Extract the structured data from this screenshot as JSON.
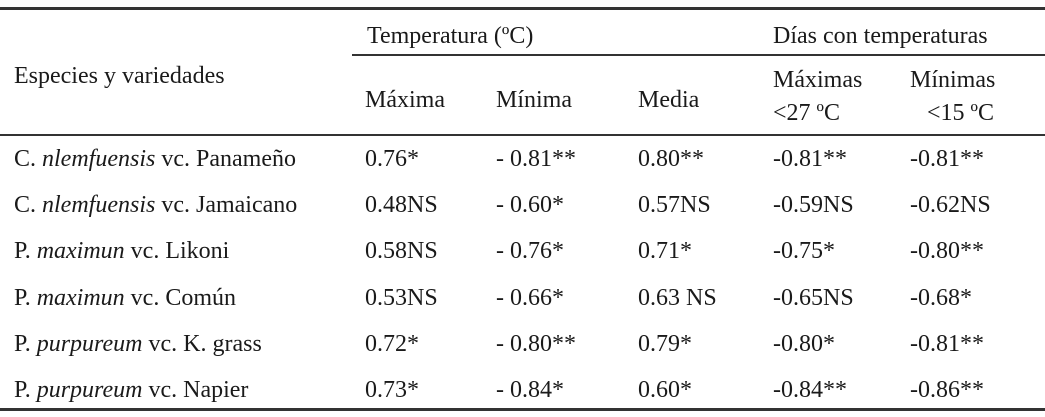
{
  "header": {
    "species_col": "Especies y variedades",
    "group_temperature": "Temperatura (ºC)",
    "group_days": "Días con temperaturas",
    "columns": [
      "Máxima",
      "Mínima",
      "Media"
    ],
    "days_max": [
      "Máximas",
      "<27 ºC"
    ],
    "days_min": [
      "Mínimas",
      "<15 ºC"
    ]
  },
  "rows": [
    {
      "genus": "C.",
      "epithet": "nlemfuensis",
      "variety": "vc. Panameño",
      "values": [
        "0.76*",
        "- 0.81**",
        "0.80**",
        "-0.81**",
        "-0.81**"
      ]
    },
    {
      "genus": "C.",
      "epithet": "nlemfuensis",
      "variety": "vc. Jamaicano",
      "values": [
        "0.48NS",
        "- 0.60*",
        "0.57NS",
        "-0.59NS",
        "-0.62NS"
      ]
    },
    {
      "genus": "P.",
      "epithet": "maximun",
      "variety": "vc. Likoni",
      "values": [
        "0.58NS",
        "- 0.76*",
        "0.71*",
        "-0.75*",
        "-0.80**"
      ]
    },
    {
      "genus": "P.",
      "epithet": "maximun",
      "variety": "vc. Común",
      "values": [
        "0.53NS",
        "- 0.66*",
        "0.63 NS",
        "-0.65NS",
        "-0.68*"
      ]
    },
    {
      "genus": "P.",
      "epithet": "purpureum",
      "variety": "vc. K. grass",
      "values": [
        "0.72*",
        "- 0.80**",
        "0.79*",
        "-0.80*",
        "-0.81**"
      ]
    },
    {
      "genus": "P.",
      "epithet": "purpureum",
      "variety": "vc. Napier",
      "values": [
        "0.73*",
        "- 0.84*",
        "0.60*",
        "-0.84**",
        "-0.86**"
      ]
    }
  ]
}
